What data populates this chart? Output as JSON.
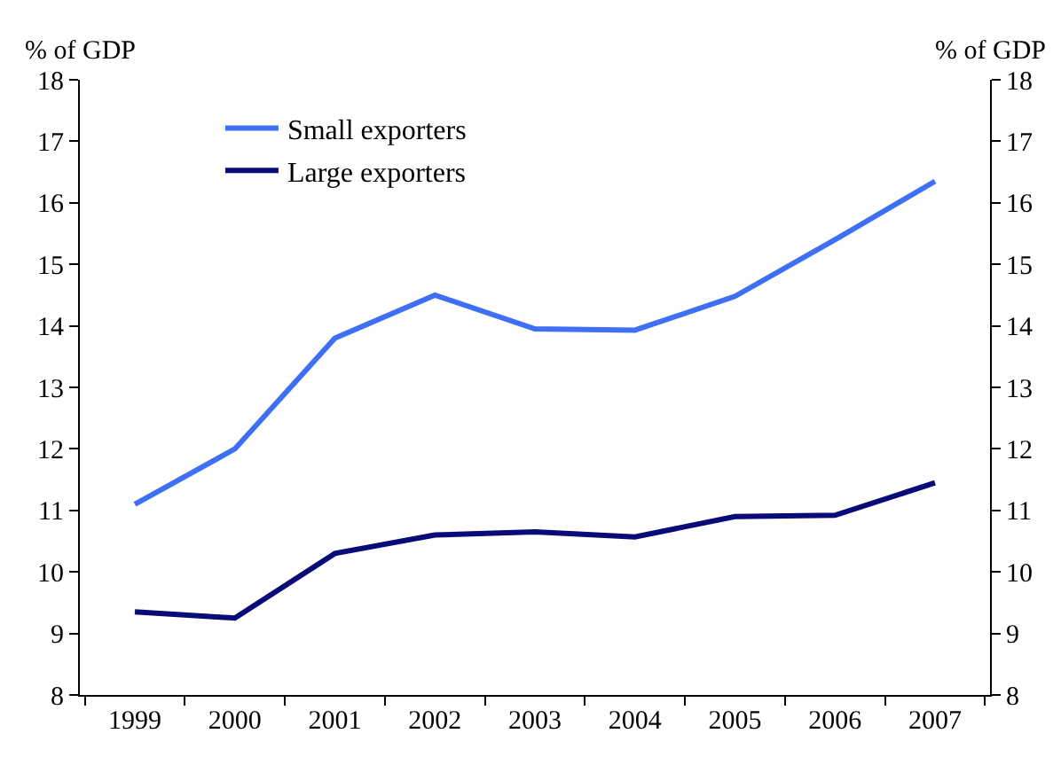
{
  "chart_data": {
    "type": "line",
    "categories": [
      "1999",
      "2000",
      "2001",
      "2002",
      "2003",
      "2004",
      "2005",
      "2006",
      "2007"
    ],
    "series": [
      {
        "name": "Small exporters",
        "color": "#3f6ff5",
        "values": [
          11.1,
          12.0,
          13.8,
          14.5,
          13.95,
          13.93,
          14.48,
          15.4,
          16.35
        ]
      },
      {
        "name": "Large exporters",
        "color": "#0a0a78",
        "values": [
          9.35,
          9.25,
          10.3,
          10.6,
          10.65,
          10.57,
          10.9,
          10.92,
          11.45
        ]
      }
    ],
    "ylabel": "% of GDP",
    "y2label": "% of GDP",
    "ylim": [
      8,
      18
    ],
    "yticks": [
      8,
      9,
      10,
      11,
      12,
      13,
      14,
      15,
      16,
      17,
      18
    ],
    "y2lim": [
      8,
      18
    ],
    "y2ticks": [
      8,
      9,
      10,
      11,
      12,
      13,
      14,
      15,
      16,
      17,
      18
    ],
    "legend": "top left",
    "marker": "none",
    "line_style": "solid"
  }
}
